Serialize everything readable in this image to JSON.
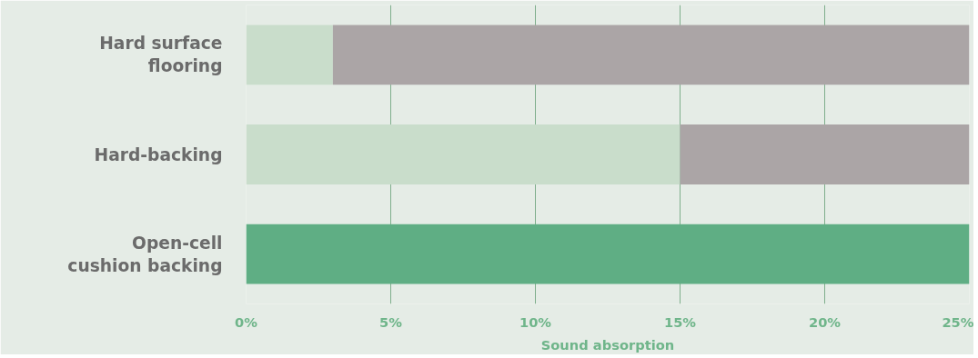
{
  "chart_data": {
    "type": "bar",
    "orientation": "horizontal",
    "stacked": true,
    "categories": [
      "Hard surface\nflooring",
      "Hard-backing",
      "Open-cell\ncushion backing"
    ],
    "series": [
      {
        "colors": [
          "#c9ddcb",
          "#c9ddcb",
          "#5fae84"
        ],
        "values": [
          3,
          15,
          25
        ]
      },
      {
        "colors": [
          "#aba5a6",
          "#aba5a6",
          "#aba5a6"
        ],
        "values": [
          22,
          10,
          0
        ]
      }
    ],
    "xlabel": "Sound absorption",
    "xlim": [
      0,
      25
    ],
    "xticks": [
      {
        "value": 0,
        "label": "0%"
      },
      {
        "value": 5,
        "label": "5%"
      },
      {
        "value": 10,
        "label": "10%"
      },
      {
        "value": 15,
        "label": "15%"
      },
      {
        "value": 20,
        "label": "20%"
      },
      {
        "value": 25,
        "label": "25%"
      }
    ],
    "grid": "x"
  }
}
